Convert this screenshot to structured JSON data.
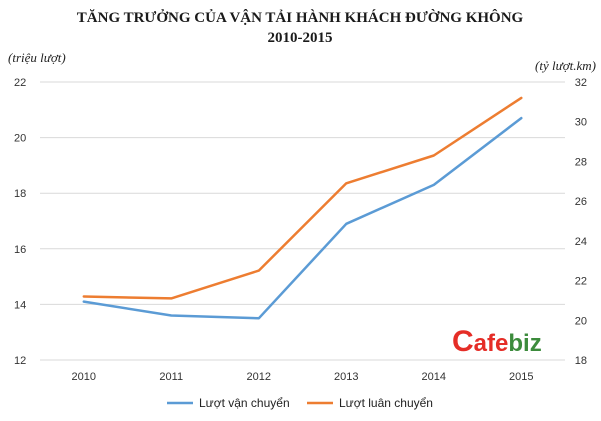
{
  "chart_data": {
    "type": "line",
    "title": "TĂNG TRƯỞNG CỦA VẬN TẢI HÀNH KHÁCH ĐƯỜNG KHÔNG",
    "subtitle": "2010-2015",
    "y_left_label": "(triệu lượt)",
    "y_right_label": "(tỷ lượt.km)",
    "categories": [
      "2010",
      "2011",
      "2012",
      "2013",
      "2014",
      "2015"
    ],
    "y_left": {
      "range": [
        12,
        22
      ],
      "ticks": [
        "12",
        "14",
        "16",
        "18",
        "20",
        "22"
      ]
    },
    "y_right": {
      "range": [
        18,
        32
      ],
      "ticks": [
        "18",
        "20",
        "22",
        "24",
        "26",
        "28",
        "30",
        "32"
      ]
    },
    "grid": true,
    "legend_position": "bottom",
    "series": [
      {
        "name": "Lượt vận chuyển",
        "axis": "left",
        "color": "#5b9bd5",
        "values": [
          14.1,
          13.6,
          13.5,
          16.9,
          18.3,
          20.7
        ]
      },
      {
        "name": "Lượt luân chuyển",
        "axis": "right",
        "color": "#ed7d31",
        "values": [
          21.2,
          21.1,
          22.5,
          26.9,
          28.3,
          31.2
        ]
      }
    ]
  },
  "watermark": {
    "c": "C",
    "afe": "afe",
    "biz": "biz"
  }
}
